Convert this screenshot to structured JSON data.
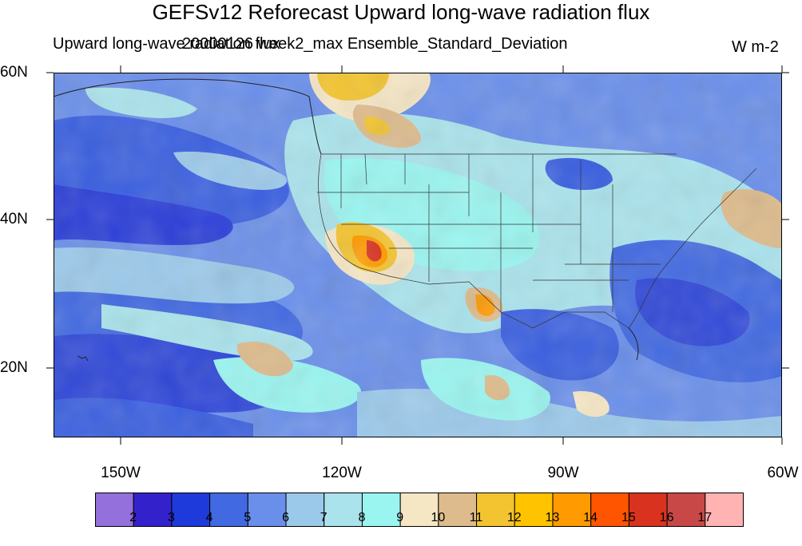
{
  "title": "GEFSv12 Reforecast Upward long-wave radiation flux",
  "subtitle_left": "Upward long-wave radiation flux",
  "subtitle_center": "20000126 week2_max Ensemble_Standard_Deviation",
  "units": "W m-2",
  "lat_labels": [
    "60N",
    "40N",
    "20N"
  ],
  "lon_labels": [
    "150W",
    "120W",
    "90W",
    "60W"
  ],
  "colorbar": {
    "colors": [
      "#9370DB",
      "#3322CC",
      "#1F3ADB",
      "#4169E1",
      "#6A8FEA",
      "#9BC9EA",
      "#AAE3EC",
      "#9AF5F0",
      "#F5E6C4",
      "#DDBB8C",
      "#F3C42F",
      "#FFC300",
      "#FF9A00",
      "#FF5500",
      "#D93320",
      "#C84848",
      "#FFB3B3"
    ],
    "labels": [
      "2",
      "3",
      "4",
      "5",
      "6",
      "7",
      "8",
      "9",
      "10",
      "11",
      "12",
      "13",
      "14",
      "15",
      "16",
      "17"
    ]
  }
}
